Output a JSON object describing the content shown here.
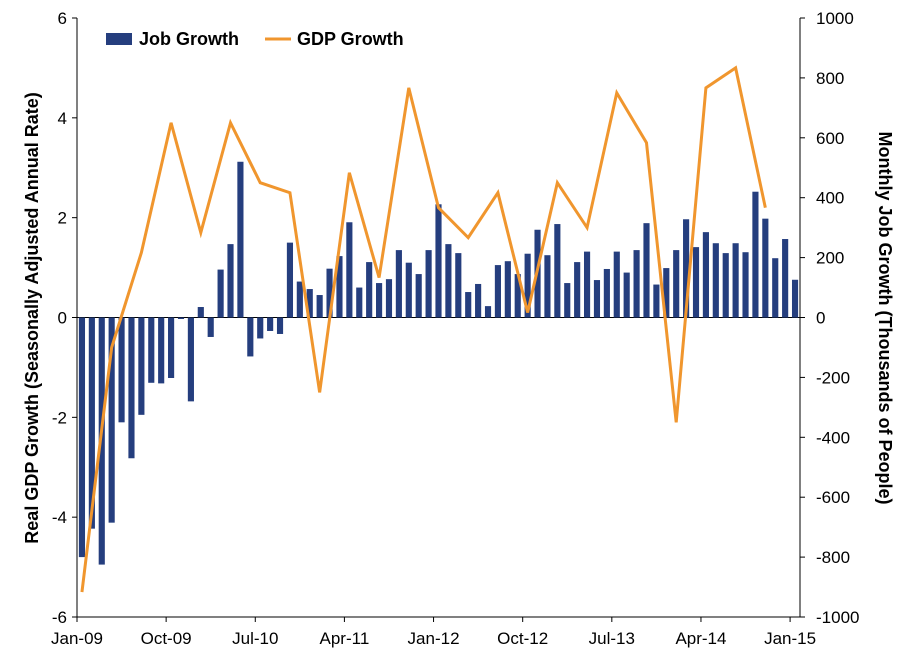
{
  "chart_data": {
    "type": "bar+line",
    "legend": {
      "placement": "top-left",
      "entries": [
        "Job Growth",
        "GDP Growth"
      ]
    },
    "colors": {
      "bars": "#253E7E",
      "line": "#F0962E"
    },
    "x_ticks": [
      "Jan-09",
      "Oct-09",
      "Jul-10",
      "Apr-11",
      "Jan-12",
      "Oct-12",
      "Jul-13",
      "Apr-14",
      "Jan-15"
    ],
    "y_left": {
      "label": "Real GDP Growth (Seasonally Adjusted Annual Rate)",
      "range": [
        -6,
        6
      ],
      "ticks": [
        "6",
        "4",
        "2",
        "0",
        "-2",
        "-4",
        "-6"
      ]
    },
    "y_right": {
      "label": "Monthly Job Growth (Thousands of People)",
      "range": [
        -1000,
        1000
      ],
      "ticks": [
        "1000",
        "800",
        "600",
        "400",
        "200",
        "0",
        "-200",
        "-400",
        "-600",
        "-800",
        "-1000"
      ]
    },
    "series": [
      {
        "name": "Job Growth",
        "kind": "bar",
        "axis": "right",
        "start": "2009-01",
        "frequency": "monthly",
        "values": [
          -800,
          -705,
          -825,
          -685,
          -350,
          -470,
          -325,
          -218,
          -220,
          -202,
          -5,
          -280,
          35,
          -65,
          160,
          245,
          520,
          -130,
          -70,
          -45,
          -55,
          250,
          120,
          95,
          75,
          163,
          205,
          318,
          100,
          185,
          115,
          128,
          225,
          183,
          145,
          225,
          378,
          245,
          215,
          85,
          112,
          38,
          175,
          188,
          145,
          213,
          293,
          208,
          312,
          115,
          185,
          220,
          125,
          162,
          220,
          150,
          225,
          315,
          110,
          165,
          225,
          328,
          235,
          285,
          248,
          215,
          248,
          218,
          420,
          330,
          198,
          262,
          126
        ]
      },
      {
        "name": "GDP Growth",
        "kind": "line",
        "axis": "left",
        "points": [
          [
            "2009-01",
            -5.5
          ],
          [
            "2009-04",
            -0.6
          ],
          [
            "2009-07",
            1.3
          ],
          [
            "2009-10",
            3.9
          ],
          [
            "2010-01",
            1.7
          ],
          [
            "2010-04",
            3.9
          ],
          [
            "2010-07",
            2.7
          ],
          [
            "2010-10",
            2.5
          ],
          [
            "2011-01",
            -1.5
          ],
          [
            "2011-04",
            2.9
          ],
          [
            "2011-07",
            0.8
          ],
          [
            "2011-10",
            4.6
          ],
          [
            "2012-01",
            2.2
          ],
          [
            "2012-04",
            1.6
          ],
          [
            "2012-07",
            2.5
          ],
          [
            "2012-10",
            0.1
          ],
          [
            "2013-01",
            2.7
          ],
          [
            "2013-04",
            1.8
          ],
          [
            "2013-07",
            4.5
          ],
          [
            "2013-10",
            3.5
          ],
          [
            "2014-01",
            -2.1
          ],
          [
            "2014-04",
            4.6
          ],
          [
            "2014-07",
            5.0
          ],
          [
            "2014-10",
            2.2
          ]
        ]
      }
    ]
  }
}
